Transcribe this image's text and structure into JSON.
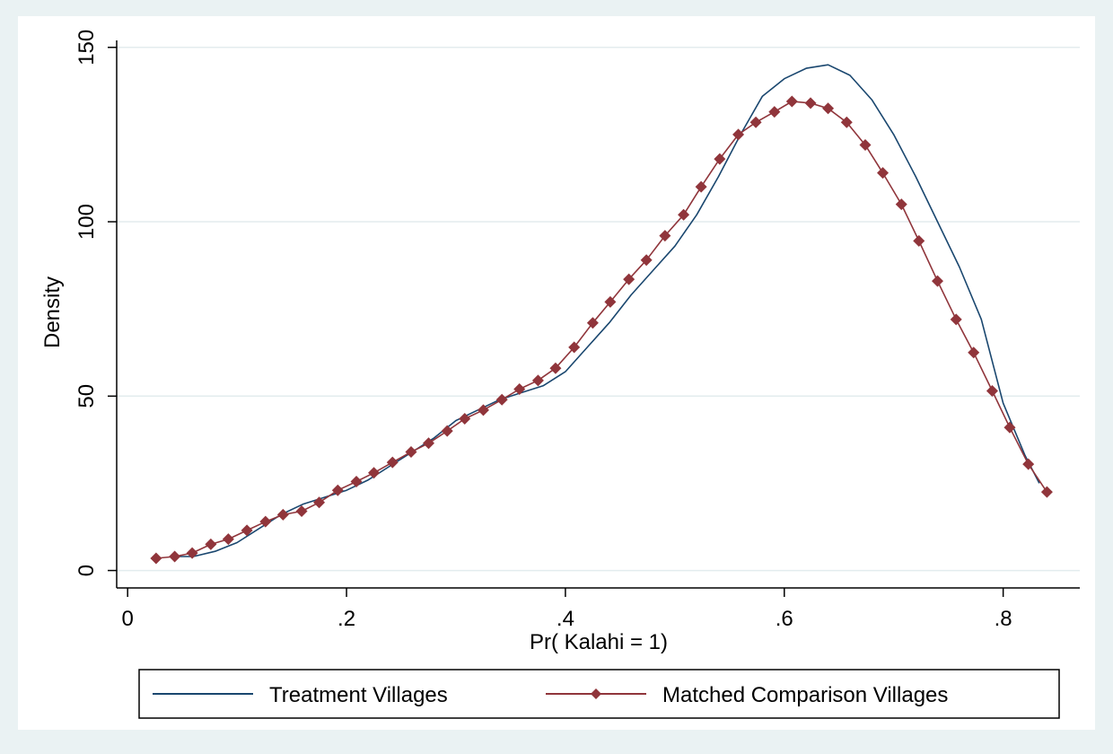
{
  "chart_data": {
    "type": "line",
    "title": "",
    "xlabel": "Pr( Kalahi = 1)",
    "ylabel": "Density",
    "xlim": [
      -0.01,
      0.87
    ],
    "ylim": [
      -5,
      152
    ],
    "x_ticks": [
      0,
      0.2,
      0.4,
      0.6,
      0.8
    ],
    "x_tick_labels": [
      "0",
      ".2",
      ".4",
      ".6",
      ".8"
    ],
    "y_ticks": [
      0,
      50,
      100,
      150
    ],
    "y_tick_labels": [
      "0",
      "50",
      "100",
      "150"
    ],
    "grid": "horizontal",
    "legend_position": "bottom",
    "series": [
      {
        "name": "Treatment Villages",
        "color": "#1a476f",
        "marker": "none",
        "x": [
          0.045,
          0.06,
          0.08,
          0.1,
          0.12,
          0.14,
          0.16,
          0.18,
          0.2,
          0.22,
          0.24,
          0.26,
          0.28,
          0.3,
          0.32,
          0.34,
          0.36,
          0.38,
          0.4,
          0.42,
          0.44,
          0.46,
          0.48,
          0.5,
          0.52,
          0.54,
          0.56,
          0.58,
          0.6,
          0.62,
          0.64,
          0.66,
          0.68,
          0.7,
          0.72,
          0.74,
          0.76,
          0.78,
          0.8,
          0.82,
          0.833
        ],
        "y": [
          4,
          4,
          5.5,
          8,
          12,
          16,
          19,
          21,
          23,
          26,
          30,
          34,
          38,
          43,
          46,
          49,
          51,
          53,
          57,
          64,
          71,
          79,
          86,
          93,
          102,
          113,
          125,
          136,
          141,
          144,
          145,
          142,
          135,
          125,
          113,
          100,
          87,
          72,
          48,
          33,
          25
        ]
      },
      {
        "name": "Matched Comparison Villages",
        "color": "#90353b",
        "marker": "diamond",
        "x": [
          0.026,
          0.043,
          0.059,
          0.076,
          0.092,
          0.109,
          0.126,
          0.142,
          0.159,
          0.175,
          0.192,
          0.209,
          0.225,
          0.242,
          0.259,
          0.275,
          0.292,
          0.308,
          0.325,
          0.342,
          0.358,
          0.375,
          0.391,
          0.408,
          0.425,
          0.441,
          0.458,
          0.474,
          0.491,
          0.508,
          0.524,
          0.541,
          0.558,
          0.574,
          0.591,
          0.607,
          0.624,
          0.64,
          0.657,
          0.674,
          0.69,
          0.707,
          0.723,
          0.74,
          0.757,
          0.773,
          0.79,
          0.806,
          0.823,
          0.84
        ],
        "y": [
          3.5,
          4,
          5,
          7.5,
          9,
          11.5,
          14,
          16,
          17,
          19.5,
          23,
          25.5,
          28,
          31,
          34,
          36.5,
          40,
          43.5,
          46,
          49,
          52,
          54.5,
          58,
          64,
          71,
          77,
          83.5,
          89,
          96,
          102,
          110,
          118,
          125,
          128.5,
          131.5,
          134.5,
          134,
          132.5,
          128.5,
          122,
          114,
          105,
          94.5,
          83,
          72,
          62.5,
          51.5,
          41,
          30.5,
          22.5
        ]
      }
    ]
  }
}
